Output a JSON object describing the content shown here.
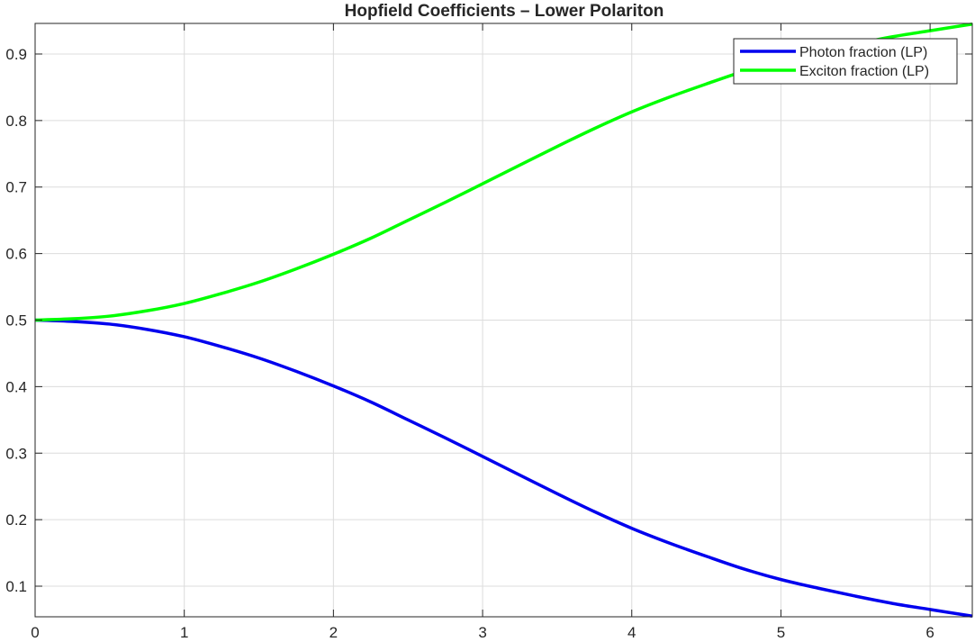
{
  "chart_data": {
    "type": "line",
    "title": "Hopfield Coefficients – Lower Polariton",
    "xlabel": "",
    "ylabel": "",
    "xlim": [
      0,
      6.283
    ],
    "ylim": [
      0.054,
      0.946
    ],
    "xticks": [
      "0",
      "1",
      "2",
      "3",
      "4",
      "5",
      "6"
    ],
    "yticks": [
      "0.1",
      "0.2",
      "0.3",
      "0.4",
      "0.5",
      "0.6",
      "0.7",
      "0.8",
      "0.9"
    ],
    "grid": true,
    "legend_position": "top-right",
    "x": [
      0,
      0.25,
      0.5,
      0.75,
      1,
      1.25,
      1.5,
      1.75,
      2,
      2.25,
      2.5,
      2.75,
      3,
      3.25,
      3.5,
      3.75,
      4,
      4.25,
      4.5,
      4.75,
      5,
      5.25,
      5.5,
      5.75,
      6,
      6.283
    ],
    "series": [
      {
        "name": "Photon fraction (LP)",
        "color": "#0000ee",
        "values": [
          0.5,
          0.498,
          0.494,
          0.486,
          0.475,
          0.46,
          0.443,
          0.423,
          0.401,
          0.377,
          0.35,
          0.323,
          0.295,
          0.267,
          0.239,
          0.212,
          0.187,
          0.165,
          0.145,
          0.126,
          0.11,
          0.097,
          0.085,
          0.074,
          0.065,
          0.055
        ]
      },
      {
        "name": "Exciton fraction (LP)",
        "color": "#00ff00",
        "values": [
          0.5,
          0.502,
          0.506,
          0.514,
          0.525,
          0.54,
          0.557,
          0.577,
          0.599,
          0.623,
          0.65,
          0.677,
          0.705,
          0.733,
          0.761,
          0.788,
          0.813,
          0.835,
          0.855,
          0.874,
          0.89,
          0.903,
          0.915,
          0.926,
          0.935,
          0.945
        ]
      }
    ]
  }
}
